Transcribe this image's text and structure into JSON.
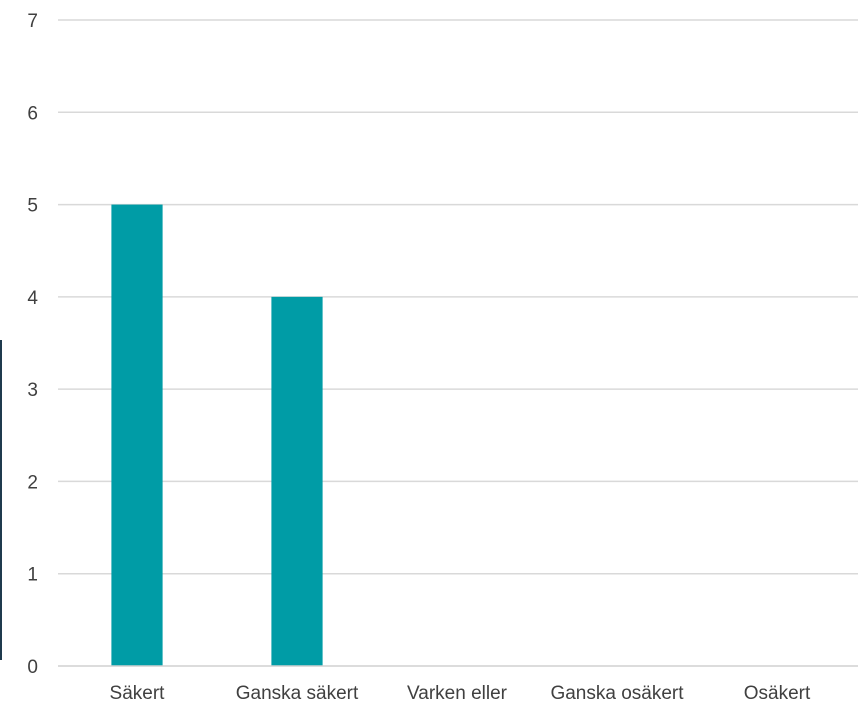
{
  "chart_data": {
    "type": "bar",
    "title": "",
    "xlabel": "",
    "ylabel": "",
    "categories": [
      "Säkert",
      "Ganska säkert",
      "Varken eller",
      "Ganska osäkert",
      "Osäkert"
    ],
    "values": [
      5,
      4,
      0,
      0,
      0
    ],
    "ylim": [
      0,
      7
    ],
    "yticks": [
      0,
      1,
      2,
      3,
      4,
      5,
      6,
      7
    ],
    "grid": true,
    "legend": "none",
    "bar_color": "#009ca6",
    "grid_color": "#d9d9d9",
    "text_color": "#404040"
  }
}
